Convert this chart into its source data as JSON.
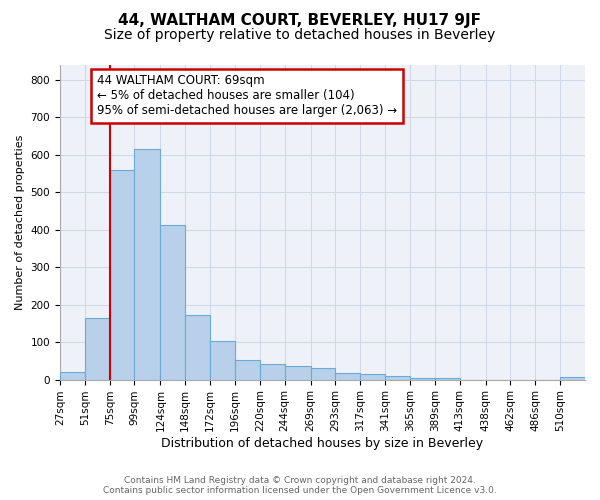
{
  "title": "44, WALTHAM COURT, BEVERLEY, HU17 9JF",
  "subtitle": "Size of property relative to detached houses in Beverley",
  "xlabel": "Distribution of detached houses by size in Beverley",
  "ylabel": "Number of detached properties",
  "footer_line1": "Contains HM Land Registry data © Crown copyright and database right 2024.",
  "footer_line2": "Contains public sector information licensed under the Open Government Licence v3.0.",
  "bar_labels": [
    "27sqm",
    "51sqm",
    "75sqm",
    "99sqm",
    "124sqm",
    "148sqm",
    "172sqm",
    "196sqm",
    "220sqm",
    "244sqm",
    "269sqm",
    "293sqm",
    "317sqm",
    "341sqm",
    "365sqm",
    "389sqm",
    "413sqm",
    "438sqm",
    "462sqm",
    "486sqm",
    "510sqm"
  ],
  "bar_values": [
    20,
    165,
    560,
    615,
    413,
    173,
    102,
    53,
    41,
    36,
    30,
    17,
    14,
    10,
    5,
    4,
    0,
    0,
    0,
    0,
    8
  ],
  "bar_color": "#b8d0ea",
  "bar_edge_color": "#6aaad4",
  "annotation_box_text": "44 WALTHAM COURT: 69sqm\n← 5% of detached houses are smaller (104)\n95% of semi-detached houses are larger (2,063) →",
  "annotation_box_color": "#ffffff",
  "annotation_box_edge_color": "#cc0000",
  "vline_color": "#cc0000",
  "ylim": [
    0,
    840
  ],
  "yticks": [
    0,
    100,
    200,
    300,
    400,
    500,
    600,
    700,
    800
  ],
  "grid_color": "#d0d8e8",
  "bg_color": "#eef2f8",
  "title_fontsize": 11,
  "subtitle_fontsize": 10,
  "xlabel_fontsize": 9,
  "ylabel_fontsize": 8,
  "tick_fontsize": 7.5,
  "annotation_fontsize": 8.5,
  "footer_fontsize": 6.5
}
